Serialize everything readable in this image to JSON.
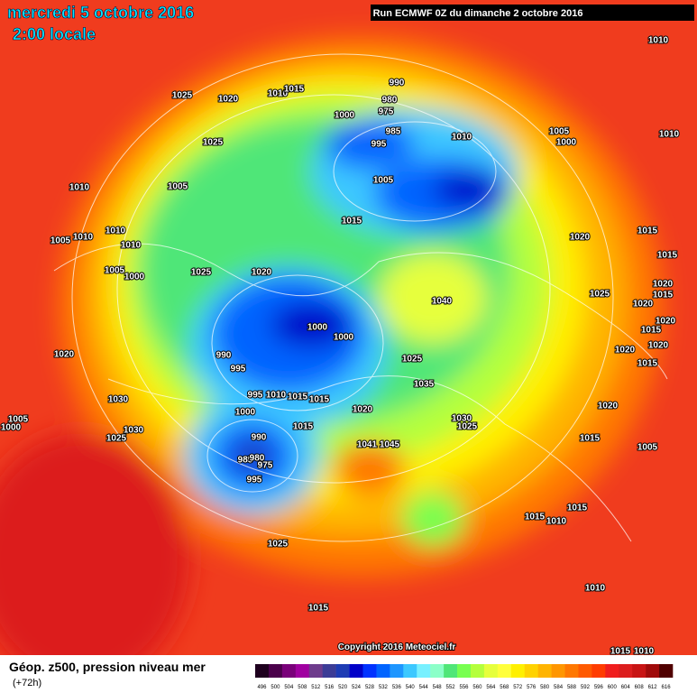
{
  "header": {
    "date": "mercredi 5 octobre 2016",
    "time": "2:00 locale",
    "run": "Run ECMWF 0Z du dimanche 2 octobre 2016"
  },
  "map": {
    "isobar_labels": [
      1010,
      1025,
      1020,
      1010,
      1015,
      990,
      980,
      975,
      1000,
      985,
      995,
      1010,
      1025,
      1005,
      1000,
      1010,
      1010,
      1005,
      1005,
      1015,
      1005,
      1010,
      1010,
      1010,
      1005,
      1000,
      1025,
      1020,
      1020,
      1015,
      1015,
      1020,
      1015,
      1025,
      1020,
      1020,
      1015,
      1040,
      1000,
      1000,
      1020,
      990,
      995,
      1020,
      1020,
      1015,
      1025,
      1035,
      995,
      1010,
      1015,
      1015,
      1030,
      1000,
      1020,
      1005,
      1000,
      1030,
      1025,
      1020,
      1030,
      1015,
      1025,
      990,
      1041,
      1045,
      1015,
      1005,
      985,
      980,
      975,
      995,
      1015,
      1015,
      1010,
      1025,
      1010,
      1015,
      1015,
      1010
    ],
    "copyright": "Copyright 2016 Meteociel.fr"
  },
  "legend": {
    "title": "Géop. z500, pression niveau mer",
    "lead": "(+72h)",
    "values": [
      496,
      500,
      504,
      508,
      512,
      516,
      520,
      524,
      528,
      532,
      536,
      540,
      544,
      548,
      552,
      556,
      560,
      564,
      568,
      572,
      576,
      580,
      584,
      588,
      592,
      596,
      600,
      604,
      608,
      612,
      616
    ],
    "colors": [
      "#1e001e",
      "#4b004b",
      "#7a007a",
      "#a000a0",
      "#6e3c8c",
      "#3c3c96",
      "#1e3cb4",
      "#0000c8",
      "#0032ff",
      "#0064ff",
      "#1e96ff",
      "#3cc8ff",
      "#78f0ff",
      "#8cffc8",
      "#50e678",
      "#78ff50",
      "#b4ff3c",
      "#e6ff3c",
      "#ffff3c",
      "#fff000",
      "#ffd200",
      "#ffb400",
      "#ff9600",
      "#ff7800",
      "#ff5a00",
      "#ff3c00",
      "#f01e1e",
      "#dc1e1e",
      "#c81414",
      "#a00a0a",
      "#500000"
    ]
  }
}
